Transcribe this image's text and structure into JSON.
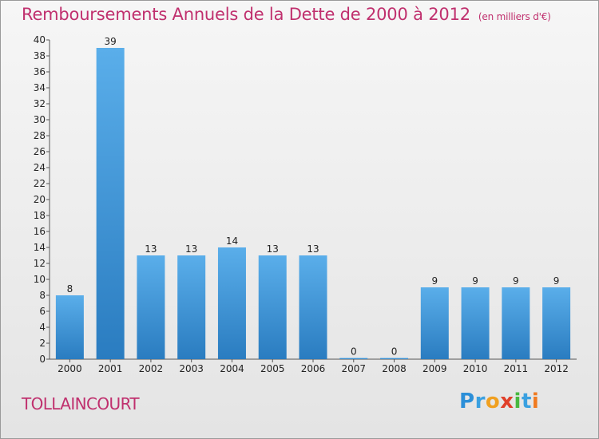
{
  "title": "Remboursements Annuels de la Dette de 2000 à 2012",
  "unit": "(en milliers d'€)",
  "commune": "TOLLAINCOURT",
  "logo_text": "Proxiti",
  "colors": {
    "title": "#c0306e",
    "bar_light": "#5aaeea",
    "bar_dark": "#2a7cc0"
  },
  "chart_data": {
    "type": "bar",
    "categories": [
      "2000",
      "2001",
      "2002",
      "2003",
      "2004",
      "2005",
      "2006",
      "2007",
      "2008",
      "2009",
      "2010",
      "2011",
      "2012"
    ],
    "values": [
      8,
      39,
      13,
      13,
      14,
      13,
      13,
      0,
      0,
      9,
      9,
      9,
      9
    ],
    "ylim": [
      0,
      40
    ],
    "yticks": [
      0,
      2,
      4,
      6,
      8,
      10,
      12,
      14,
      16,
      18,
      20,
      22,
      24,
      26,
      28,
      30,
      32,
      34,
      36,
      38,
      40
    ],
    "grid": false,
    "legend": "none"
  }
}
